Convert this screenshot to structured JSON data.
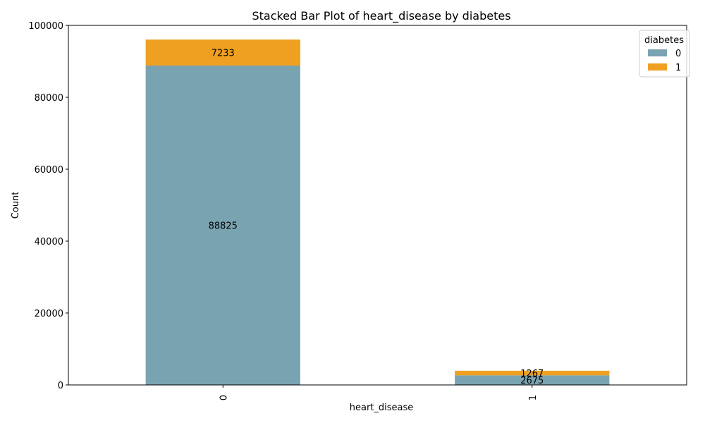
{
  "chart_data": {
    "type": "bar",
    "stacked": true,
    "title": "Stacked Bar Plot of heart_disease by diabetes",
    "xlabel": "heart_disease",
    "ylabel": "Count",
    "categories": [
      "0",
      "1"
    ],
    "series": [
      {
        "name": "0",
        "values": [
          88825,
          2675
        ],
        "color": "#7aa3b1",
        "labels": [
          "88825",
          "2675"
        ]
      },
      {
        "name": "1",
        "values": [
          7233,
          1267
        ],
        "color": "#efa021",
        "labels": [
          "7233",
          "1267"
        ]
      }
    ],
    "ylim": [
      0,
      100000
    ],
    "yticks": [
      0,
      20000,
      40000,
      60000,
      80000,
      100000
    ],
    "ytick_labels": [
      "0",
      "20000",
      "40000",
      "60000",
      "80000",
      "100000"
    ],
    "legend": {
      "title": "diabetes",
      "position": "top-right"
    },
    "grid": false
  }
}
